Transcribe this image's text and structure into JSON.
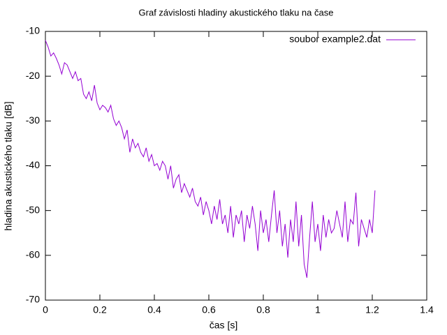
{
  "chart_data": {
    "type": "line",
    "title": "Graf závislosti hladiny akustického tlaku na čase",
    "x_label": "čas [s]",
    "y_label": "hladina akustického tlaku [dB]",
    "xlim": [
      0,
      1.4
    ],
    "xticks": [
      0,
      0.2,
      0.4,
      0.6,
      0.8,
      1,
      1.2,
      1.4
    ],
    "ylim": [
      -70,
      -10
    ],
    "yticks": [
      -70,
      -60,
      -50,
      -40,
      -30,
      -20,
      -10
    ],
    "legend": "top-right",
    "x": [
      0,
      0.01,
      0.02,
      0.03,
      0.04,
      0.05,
      0.06,
      0.07,
      0.08,
      0.09,
      0.1,
      0.11,
      0.12,
      0.13,
      0.14,
      0.15,
      0.16,
      0.17,
      0.18,
      0.19,
      0.2,
      0.21,
      0.22,
      0.23,
      0.24,
      0.25,
      0.26,
      0.27,
      0.28,
      0.29,
      0.3,
      0.31,
      0.32,
      0.33,
      0.34,
      0.35,
      0.36,
      0.37,
      0.38,
      0.39,
      0.4,
      0.41,
      0.42,
      0.43,
      0.44,
      0.45,
      0.46,
      0.47,
      0.48,
      0.49,
      0.5,
      0.51,
      0.52,
      0.53,
      0.54,
      0.55,
      0.56,
      0.57,
      0.58,
      0.59,
      0.6,
      0.61,
      0.62,
      0.63,
      0.64,
      0.65,
      0.66,
      0.67,
      0.68,
      0.69,
      0.7,
      0.71,
      0.72,
      0.73,
      0.74,
      0.75,
      0.76,
      0.77,
      0.78,
      0.79,
      0.8,
      0.81,
      0.82,
      0.83,
      0.84,
      0.85,
      0.86,
      0.87,
      0.88,
      0.89,
      0.9,
      0.91,
      0.92,
      0.93,
      0.94,
      0.95,
      0.96,
      0.97,
      0.98,
      0.99,
      1,
      1.01,
      1.02,
      1.03,
      1.04,
      1.05,
      1.06,
      1.07,
      1.08,
      1.09,
      1.1,
      1.11,
      1.12,
      1.13,
      1.14,
      1.15,
      1.16,
      1.17,
      1.18,
      1.19,
      1.2,
      1.21
    ],
    "series": [
      {
        "name": "soubor example2.dat",
        "color": "#9400d3",
        "values": [
          -12,
          -13.5,
          -15.5,
          -14.8,
          -16,
          -17.5,
          -19.5,
          -17,
          -17.5,
          -19,
          -20.5,
          -19,
          -21,
          -20.5,
          -24,
          -25,
          -23.5,
          -25.5,
          -22,
          -26,
          -27.5,
          -26.5,
          -27,
          -28,
          -26.5,
          -29.5,
          -31,
          -30,
          -31.5,
          -34,
          -32,
          -37,
          -34,
          -36,
          -35,
          -37,
          -38,
          -36,
          -39,
          -37.5,
          -40,
          -39.5,
          -41,
          -39,
          -40,
          -43,
          -40,
          -45,
          -43,
          -42,
          -46,
          -44,
          -45.5,
          -47,
          -45,
          -48,
          -49,
          -47,
          -51,
          -48,
          -50,
          -53,
          -49,
          -52,
          -47.5,
          -53,
          -51,
          -55,
          -49,
          -56,
          -51,
          -53,
          -50,
          -57,
          -51,
          -54,
          -49,
          -53,
          -59,
          -50,
          -55,
          -52,
          -57,
          -51,
          -45.5,
          -55,
          -50,
          -58,
          -53,
          -60.5,
          -52,
          -57,
          -48,
          -58,
          -51,
          -62,
          -65,
          -56,
          -48,
          -57,
          -53,
          -59,
          -51,
          -56,
          -52,
          -55,
          -54,
          -50,
          -53,
          -56,
          -48,
          -57,
          -52,
          -53,
          -46,
          -58,
          -52,
          -54,
          -56,
          -52,
          -55,
          -45.5
        ]
      }
    ]
  }
}
